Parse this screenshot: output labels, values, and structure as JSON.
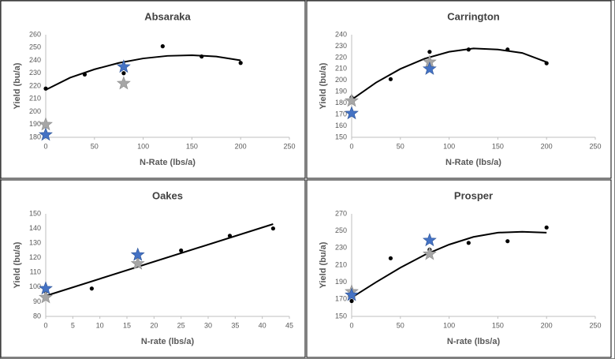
{
  "chart_data": [
    {
      "type": "scatter",
      "title": "Absaraka",
      "xlabel": "N-Rate (lbs/a)",
      "ylabel": "Yield (bu/a)",
      "xlim": [
        0,
        250
      ],
      "xticks": [
        0,
        50,
        100,
        150,
        200,
        250
      ],
      "ylim": [
        180,
        260
      ],
      "yticks": [
        180,
        190,
        200,
        210,
        220,
        230,
        240,
        250,
        260
      ],
      "grid": false,
      "series": [
        {
          "marker": "line",
          "color": "#000000",
          "x": [
            0,
            25,
            50,
            75,
            100,
            125,
            150,
            175,
            200
          ],
          "values": [
            217,
            226.5,
            233,
            238,
            241.5,
            243.5,
            244,
            243,
            240
          ]
        },
        {
          "marker": "circle",
          "color": "#000000",
          "x": [
            0,
            40,
            80,
            120,
            160,
            200
          ],
          "values": [
            218,
            229,
            230,
            251,
            243,
            238
          ]
        },
        {
          "marker": "star",
          "color": "#a6a6a6",
          "x": [
            0,
            80
          ],
          "values": [
            190,
            222
          ]
        },
        {
          "marker": "star",
          "color": "#4472c4",
          "x": [
            0,
            80
          ],
          "values": [
            182,
            235
          ]
        }
      ]
    },
    {
      "type": "scatter",
      "title": "Carrington",
      "xlabel": "N-Rate (lbs/a)",
      "ylabel": "Yield (bu/a)",
      "xlim": [
        0,
        250
      ],
      "xticks": [
        0,
        50,
        100,
        150,
        200,
        250
      ],
      "ylim": [
        150,
        240
      ],
      "yticks": [
        150,
        160,
        170,
        180,
        190,
        200,
        210,
        220,
        230,
        240
      ],
      "grid": false,
      "series": [
        {
          "marker": "line",
          "color": "#000000",
          "x": [
            0,
            25,
            50,
            75,
            100,
            125,
            150,
            175,
            200
          ],
          "values": [
            183,
            198,
            210,
            219,
            225,
            228,
            227,
            224,
            216
          ]
        },
        {
          "marker": "circle",
          "color": "#000000",
          "x": [
            0,
            40,
            80,
            120,
            160,
            200
          ],
          "values": [
            185,
            201,
            225,
            227,
            227,
            215
          ]
        },
        {
          "marker": "star",
          "color": "#a6a6a6",
          "x": [
            0,
            80
          ],
          "values": [
            182,
            216
          ]
        },
        {
          "marker": "star",
          "color": "#4472c4",
          "x": [
            0,
            80
          ],
          "values": [
            171,
            210
          ]
        }
      ]
    },
    {
      "type": "scatter",
      "title": "Oakes",
      "xlabel": "N-rate (lbs/a)",
      "ylabel": "Yield (bu/a)",
      "xlim": [
        0,
        45
      ],
      "xticks": [
        0,
        5,
        10,
        15,
        20,
        25,
        30,
        35,
        40,
        45
      ],
      "ylim": [
        80,
        150
      ],
      "yticks": [
        80,
        90,
        100,
        110,
        120,
        130,
        140,
        150
      ],
      "grid": false,
      "series": [
        {
          "marker": "line",
          "color": "#000000",
          "x": [
            0,
            42
          ],
          "values": [
            94,
            143
          ]
        },
        {
          "marker": "circle",
          "color": "#000000",
          "x": [
            0,
            8.5,
            17,
            25,
            34,
            42
          ],
          "values": [
            97,
            99,
            116,
            125,
            135,
            140
          ]
        },
        {
          "marker": "star",
          "color": "#a6a6a6",
          "x": [
            0,
            17
          ],
          "values": [
            93,
            116
          ]
        },
        {
          "marker": "star",
          "color": "#4472c4",
          "x": [
            0,
            17
          ],
          "values": [
            99,
            122
          ]
        }
      ]
    },
    {
      "type": "scatter",
      "title": "Prosper",
      "xlabel": "N-rate (lbs/a)",
      "ylabel": "Yield (bu/a)",
      "xlim": [
        0,
        250
      ],
      "xticks": [
        0,
        50,
        100,
        150,
        200,
        250
      ],
      "ylim": [
        150,
        270
      ],
      "yticks": [
        150,
        170,
        190,
        210,
        230,
        250,
        270
      ],
      "grid": false,
      "series": [
        {
          "marker": "line",
          "color": "#000000",
          "x": [
            0,
            25,
            50,
            75,
            100,
            125,
            150,
            175,
            200
          ],
          "values": [
            172,
            190,
            207,
            222,
            234,
            243,
            248,
            249,
            248
          ]
        },
        {
          "marker": "circle",
          "color": "#000000",
          "x": [
            0,
            40,
            80,
            120,
            160,
            200
          ],
          "values": [
            168,
            218,
            228,
            236,
            238,
            254
          ]
        },
        {
          "marker": "star",
          "color": "#a6a6a6",
          "x": [
            0,
            80
          ],
          "values": [
            179,
            223
          ]
        },
        {
          "marker": "star",
          "color": "#4472c4",
          "x": [
            0,
            80
          ],
          "values": [
            175,
            239
          ]
        }
      ]
    }
  ]
}
